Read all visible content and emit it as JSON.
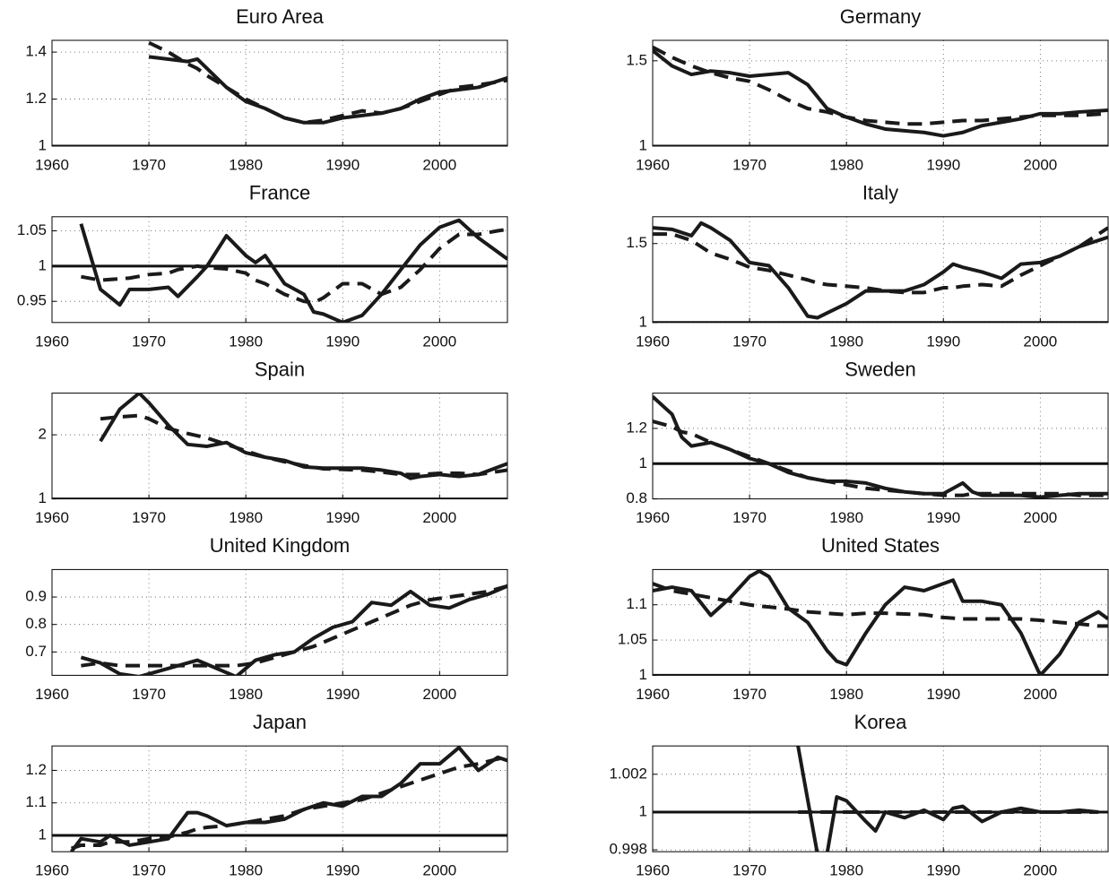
{
  "chart_data": [
    {
      "type": "line",
      "title": "Euro Area",
      "xlim": [
        1960,
        2007
      ],
      "xticks": [
        1960,
        1970,
        1980,
        1990,
        2000
      ],
      "ylim": [
        1,
        1.45
      ],
      "yticks": [
        1,
        1.2,
        1.4
      ],
      "grid": true,
      "hline": 1,
      "x": [
        1970,
        1972,
        1974,
        1975,
        1976,
        1978,
        1980,
        1982,
        1984,
        1986,
        1988,
        1990,
        1992,
        1994,
        1996,
        1998,
        2000,
        2002,
        2004,
        2007
      ],
      "series": [
        {
          "color": "#1a1a1a",
          "dash": false,
          "values": [
            1.38,
            1.37,
            1.36,
            1.37,
            1.33,
            1.25,
            1.19,
            1.16,
            1.12,
            1.1,
            1.1,
            1.12,
            1.13,
            1.14,
            1.16,
            1.2,
            1.23,
            1.24,
            1.25,
            1.29
          ]
        },
        {
          "color": "#1a1a1a",
          "dash": true,
          "values": [
            1.44,
            1.4,
            1.35,
            1.33,
            1.3,
            1.25,
            1.2,
            1.16,
            1.12,
            1.1,
            1.11,
            1.13,
            1.15,
            1.14,
            1.16,
            1.19,
            1.22,
            1.25,
            1.26,
            1.28
          ]
        }
      ]
    },
    {
      "type": "line",
      "title": "Germany",
      "xlim": [
        1960,
        2007
      ],
      "xticks": [
        1960,
        1970,
        1980,
        1990,
        2000
      ],
      "ylim": [
        1,
        1.62
      ],
      "yticks": [
        1,
        1.5
      ],
      "grid": true,
      "hline": 1,
      "x": [
        1960,
        1962,
        1964,
        1966,
        1968,
        1970,
        1972,
        1974,
        1976,
        1978,
        1980,
        1982,
        1984,
        1986,
        1988,
        1990,
        1992,
        1994,
        1996,
        1998,
        2000,
        2002,
        2004,
        2007
      ],
      "series": [
        {
          "color": "#1a1a1a",
          "dash": false,
          "values": [
            1.56,
            1.47,
            1.42,
            1.44,
            1.43,
            1.41,
            1.42,
            1.43,
            1.36,
            1.22,
            1.17,
            1.13,
            1.1,
            1.09,
            1.08,
            1.06,
            1.08,
            1.12,
            1.14,
            1.16,
            1.19,
            1.19,
            1.2,
            1.21
          ]
        },
        {
          "color": "#1a1a1a",
          "dash": true,
          "values": [
            1.58,
            1.52,
            1.47,
            1.43,
            1.4,
            1.38,
            1.33,
            1.27,
            1.22,
            1.2,
            1.17,
            1.15,
            1.14,
            1.13,
            1.13,
            1.14,
            1.15,
            1.15,
            1.16,
            1.17,
            1.18,
            1.18,
            1.18,
            1.19
          ]
        }
      ]
    },
    {
      "type": "line",
      "title": "France",
      "xlim": [
        1960,
        2007
      ],
      "xticks": [
        1960,
        1970,
        1980,
        1990,
        2000
      ],
      "ylim": [
        0.92,
        1.07
      ],
      "yticks": [
        0.95,
        1,
        1.05
      ],
      "grid": true,
      "hline": 1,
      "x": [
        1963,
        1965,
        1967,
        1968,
        1970,
        1972,
        1973,
        1975,
        1976,
        1978,
        1980,
        1981,
        1982,
        1984,
        1986,
        1987,
        1988,
        1990,
        1992,
        1994,
        1996,
        1998,
        2000,
        2002,
        2004,
        2006,
        2007
      ],
      "series": [
        {
          "color": "#1a1a1a",
          "dash": false,
          "values": [
            1.06,
            0.967,
            0.945,
            0.967,
            0.967,
            0.97,
            0.957,
            0.985,
            1.0,
            1.043,
            1.015,
            1.005,
            1.015,
            0.975,
            0.96,
            0.935,
            0.932,
            0.92,
            0.93,
            0.96,
            0.995,
            1.03,
            1.055,
            1.065,
            1.04,
            1.02,
            1.01
          ]
        },
        {
          "color": "#1a1a1a",
          "dash": true,
          "values": [
            0.985,
            0.98,
            0.982,
            0.983,
            0.988,
            0.99,
            0.995,
            1.0,
            0.998,
            0.996,
            0.99,
            0.98,
            0.975,
            0.96,
            0.95,
            0.948,
            0.955,
            0.975,
            0.975,
            0.96,
            0.97,
            0.995,
            1.025,
            1.045,
            1.045,
            1.05,
            1.052
          ]
        }
      ]
    },
    {
      "type": "line",
      "title": "Italy",
      "xlim": [
        1960,
        2007
      ],
      "xticks": [
        1960,
        1970,
        1980,
        1990,
        2000
      ],
      "ylim": [
        1,
        1.67
      ],
      "yticks": [
        1,
        1.5
      ],
      "grid": true,
      "hline": 1,
      "x": [
        1960,
        1962,
        1964,
        1965,
        1966,
        1968,
        1970,
        1972,
        1974,
        1976,
        1977,
        1978,
        1980,
        1982,
        1984,
        1986,
        1988,
        1990,
        1991,
        1992,
        1994,
        1996,
        1998,
        2000,
        2002,
        2004,
        2007
      ],
      "series": [
        {
          "color": "#1a1a1a",
          "dash": false,
          "values": [
            1.6,
            1.59,
            1.55,
            1.63,
            1.6,
            1.52,
            1.38,
            1.36,
            1.22,
            1.04,
            1.03,
            1.06,
            1.12,
            1.2,
            1.2,
            1.2,
            1.24,
            1.32,
            1.37,
            1.35,
            1.32,
            1.28,
            1.37,
            1.38,
            1.42,
            1.48,
            1.54
          ]
        },
        {
          "color": "#1a1a1a",
          "dash": true,
          "values": [
            1.56,
            1.56,
            1.52,
            1.48,
            1.44,
            1.4,
            1.35,
            1.33,
            1.3,
            1.27,
            1.25,
            1.24,
            1.23,
            1.22,
            1.2,
            1.19,
            1.19,
            1.22,
            1.22,
            1.23,
            1.24,
            1.23,
            1.3,
            1.36,
            1.42,
            1.48,
            1.6
          ]
        }
      ]
    },
    {
      "type": "line",
      "title": "Spain",
      "xlim": [
        1960,
        2007
      ],
      "xticks": [
        1960,
        1970,
        1980,
        1990,
        2000
      ],
      "ylim": [
        1,
        2.65
      ],
      "yticks": [
        1,
        2
      ],
      "grid": true,
      "hline": 1,
      "x": [
        1965,
        1967,
        1969,
        1970,
        1972,
        1974,
        1976,
        1978,
        1980,
        1982,
        1984,
        1986,
        1988,
        1990,
        1992,
        1994,
        1996,
        1997,
        1998,
        2000,
        2002,
        2004,
        2007
      ],
      "series": [
        {
          "color": "#1a1a1a",
          "dash": false,
          "values": [
            1.9,
            2.4,
            2.65,
            2.5,
            2.15,
            1.85,
            1.82,
            1.88,
            1.72,
            1.65,
            1.6,
            1.5,
            1.48,
            1.48,
            1.48,
            1.45,
            1.4,
            1.32,
            1.35,
            1.38,
            1.35,
            1.38,
            1.55
          ]
        },
        {
          "color": "#1a1a1a",
          "dash": true,
          "values": [
            2.25,
            2.28,
            2.3,
            2.25,
            2.1,
            2.02,
            1.95,
            1.85,
            1.75,
            1.65,
            1.58,
            1.52,
            1.47,
            1.46,
            1.45,
            1.42,
            1.38,
            1.38,
            1.38,
            1.4,
            1.4,
            1.38,
            1.45
          ]
        }
      ]
    },
    {
      "type": "line",
      "title": "Sweden",
      "xlim": [
        1960,
        2007
      ],
      "xticks": [
        1960,
        1970,
        1980,
        1990,
        2000
      ],
      "ylim": [
        0.8,
        1.4
      ],
      "yticks": [
        0.8,
        1,
        1.2
      ],
      "grid": true,
      "hline": 1,
      "x": [
        1960,
        1962,
        1963,
        1964,
        1966,
        1968,
        1970,
        1972,
        1974,
        1976,
        1978,
        1980,
        1982,
        1984,
        1986,
        1988,
        1990,
        1992,
        1993,
        1994,
        1996,
        1998,
        2000,
        2002,
        2004,
        2007
      ],
      "series": [
        {
          "color": "#1a1a1a",
          "dash": false,
          "values": [
            1.38,
            1.28,
            1.15,
            1.1,
            1.12,
            1.08,
            1.03,
            1.0,
            0.95,
            0.92,
            0.9,
            0.9,
            0.89,
            0.86,
            0.84,
            0.83,
            0.83,
            0.89,
            0.84,
            0.82,
            0.82,
            0.82,
            0.81,
            0.82,
            0.83,
            0.83
          ]
        },
        {
          "color": "#1a1a1a",
          "dash": true,
          "values": [
            1.24,
            1.21,
            1.18,
            1.17,
            1.12,
            1.08,
            1.04,
            1.0,
            0.96,
            0.92,
            0.9,
            0.88,
            0.86,
            0.85,
            0.84,
            0.83,
            0.82,
            0.82,
            0.83,
            0.83,
            0.83,
            0.83,
            0.83,
            0.83,
            0.82,
            0.82
          ]
        }
      ]
    },
    {
      "type": "line",
      "title": "United Kingdom",
      "xlim": [
        1960,
        2007
      ],
      "xticks": [
        1960,
        1970,
        1980,
        1990,
        2000
      ],
      "ylim": [
        0.615,
        1
      ],
      "yticks": [
        0.7,
        0.8,
        0.9
      ],
      "grid": true,
      "x": [
        1963,
        1965,
        1967,
        1969,
        1971,
        1973,
        1975,
        1977,
        1979,
        1981,
        1983,
        1985,
        1987,
        1989,
        1991,
        1993,
        1995,
        1997,
        1999,
        2001,
        2003,
        2005,
        2007
      ],
      "series": [
        {
          "color": "#1a1a1a",
          "dash": false,
          "values": [
            0.68,
            0.66,
            0.62,
            0.61,
            0.63,
            0.65,
            0.67,
            0.64,
            0.61,
            0.67,
            0.69,
            0.7,
            0.75,
            0.79,
            0.81,
            0.88,
            0.87,
            0.92,
            0.87,
            0.86,
            0.89,
            0.91,
            0.94
          ]
        },
        {
          "color": "#1a1a1a",
          "dash": true,
          "values": [
            0.65,
            0.66,
            0.65,
            0.65,
            0.65,
            0.65,
            0.65,
            0.65,
            0.65,
            0.66,
            0.68,
            0.7,
            0.72,
            0.75,
            0.78,
            0.81,
            0.84,
            0.87,
            0.89,
            0.9,
            0.91,
            0.92,
            0.94
          ]
        }
      ]
    },
    {
      "type": "line",
      "title": "United States",
      "xlim": [
        1960,
        2007
      ],
      "xticks": [
        1960,
        1970,
        1980,
        1990,
        2000
      ],
      "ylim": [
        1,
        1.15
      ],
      "yticks": [
        1,
        1.05,
        1.1
      ],
      "grid": true,
      "hline": 1,
      "x": [
        1960,
        1962,
        1964,
        1966,
        1968,
        1970,
        1971,
        1972,
        1974,
        1976,
        1978,
        1979,
        1980,
        1982,
        1984,
        1986,
        1988,
        1990,
        1991,
        1992,
        1994,
        1996,
        1998,
        2000,
        2002,
        2004,
        2006,
        2007
      ],
      "series": [
        {
          "color": "#1a1a1a",
          "dash": false,
          "values": [
            1.12,
            1.125,
            1.12,
            1.085,
            1.11,
            1.14,
            1.148,
            1.14,
            1.095,
            1.075,
            1.035,
            1.02,
            1.015,
            1.06,
            1.1,
            1.125,
            1.12,
            1.13,
            1.135,
            1.105,
            1.105,
            1.1,
            1.06,
            1.0,
            1.03,
            1.075,
            1.09,
            1.08
          ]
        },
        {
          "color": "#1a1a1a",
          "dash": true,
          "values": [
            1.13,
            1.12,
            1.115,
            1.11,
            1.105,
            1.1,
            1.098,
            1.097,
            1.094,
            1.09,
            1.088,
            1.087,
            1.086,
            1.088,
            1.088,
            1.087,
            1.086,
            1.082,
            1.081,
            1.08,
            1.08,
            1.08,
            1.08,
            1.078,
            1.075,
            1.073,
            1.07,
            1.07
          ]
        }
      ]
    },
    {
      "type": "line",
      "title": "Japan",
      "xlim": [
        1960,
        2007
      ],
      "xticks": [
        1960,
        1970,
        1980,
        1990,
        2000
      ],
      "ylim": [
        0.95,
        1.275
      ],
      "yticks": [
        1,
        1.1,
        1.2
      ],
      "grid": true,
      "hline": 1,
      "x": [
        1962,
        1963,
        1965,
        1966,
        1968,
        1970,
        1972,
        1974,
        1975,
        1976,
        1978,
        1980,
        1982,
        1984,
        1986,
        1988,
        1990,
        1992,
        1994,
        1996,
        1998,
        2000,
        2002,
        2004,
        2006,
        2007
      ],
      "series": [
        {
          "color": "#1a1a1a",
          "dash": false,
          "values": [
            0.95,
            0.99,
            0.98,
            1.0,
            0.97,
            0.98,
            0.99,
            1.07,
            1.07,
            1.06,
            1.03,
            1.04,
            1.04,
            1.05,
            1.08,
            1.1,
            1.09,
            1.12,
            1.12,
            1.16,
            1.22,
            1.22,
            1.27,
            1.2,
            1.24,
            1.23
          ]
        },
        {
          "color": "#1a1a1a",
          "dash": true,
          "values": [
            0.96,
            0.97,
            0.97,
            0.98,
            0.98,
            0.99,
            0.995,
            1.01,
            1.02,
            1.025,
            1.03,
            1.04,
            1.05,
            1.06,
            1.08,
            1.09,
            1.1,
            1.11,
            1.13,
            1.15,
            1.17,
            1.19,
            1.21,
            1.22,
            1.235,
            1.24
          ]
        }
      ]
    },
    {
      "type": "line",
      "title": "Korea",
      "xlim": [
        1960,
        2007
      ],
      "xticks": [
        1960,
        1970,
        1980,
        1990,
        2000
      ],
      "ylim": [
        0.9979,
        1.0035
      ],
      "yticks": [
        0.998,
        1,
        1.002
      ],
      "grid": true,
      "hline": 1,
      "x": [
        1975,
        1977,
        1978,
        1979,
        1980,
        1982,
        1983,
        1984,
        1986,
        1988,
        1990,
        1991,
        1992,
        1994,
        1996,
        1998,
        2000,
        2002,
        2004,
        2006
      ],
      "series": [
        {
          "color": "#1a1a1a",
          "dash": false,
          "values": [
            1.0035,
            0.9978,
            0.9978,
            1.0008,
            1.0006,
            0.9995,
            0.999,
            1.0,
            0.9997,
            1.0001,
            0.9996,
            1.0002,
            1.0003,
            0.9995,
            1.0,
            1.0002,
            1.0,
            1.0,
            1.0001,
            1.0
          ]
        },
        {
          "color": "#1a1a1a",
          "dash": true,
          "values": [
            1.0,
            1.0,
            1.0,
            1.0,
            1.0,
            1.0,
            1.0,
            1.0,
            1.0,
            1.0,
            1.0,
            1.0,
            1.0,
            1.0,
            1.0,
            1.0,
            1.0,
            1.0,
            1.0,
            1.0
          ]
        }
      ]
    }
  ]
}
